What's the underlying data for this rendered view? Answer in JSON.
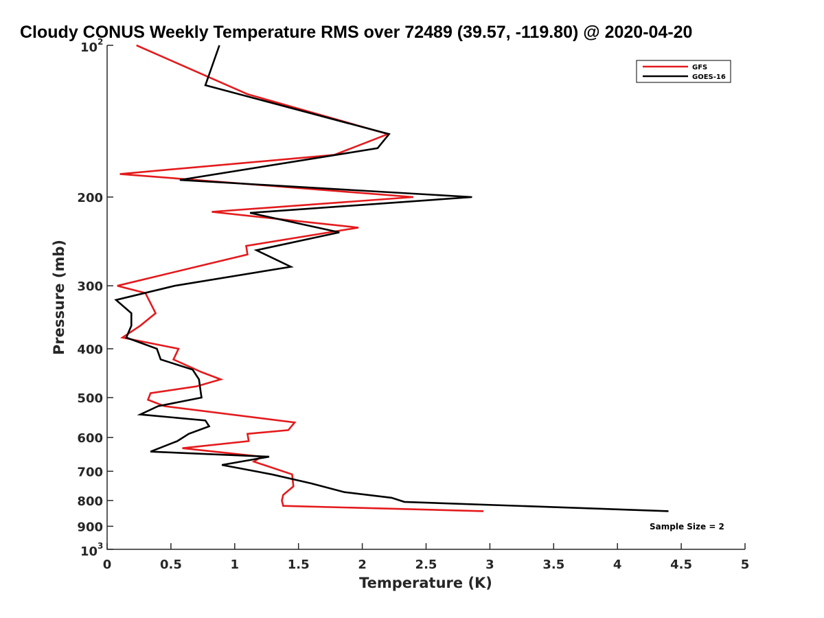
{
  "chart_data": {
    "type": "line",
    "title": "Cloudy CONUS Weekly Temperature RMS over 72489 (39.57, -119.80) @ 2020-04-20",
    "xlabel": "Temperature (K)",
    "ylabel": "Pressure (mb)",
    "xlim": [
      0,
      5
    ],
    "ylim": [
      100,
      1000
    ],
    "y_scale": "log",
    "y_reversed": true,
    "grid": false,
    "legend_position": "top-right",
    "x_ticks": [
      "0",
      "0.5",
      "1",
      "1.5",
      "2",
      "2.5",
      "3",
      "3.5",
      "4",
      "4.5",
      "5"
    ],
    "y_ticks": [
      {
        "value": 100,
        "base": "10",
        "exp": "2"
      },
      {
        "value": 200,
        "label": "200"
      },
      {
        "value": 300,
        "label": "300"
      },
      {
        "value": 400,
        "label": "400"
      },
      {
        "value": 500,
        "label": "500"
      },
      {
        "value": 600,
        "label": "600"
      },
      {
        "value": 700,
        "label": "700"
      },
      {
        "value": 800,
        "label": "800"
      },
      {
        "value": 900,
        "label": "900"
      },
      {
        "value": 1000,
        "base": "10",
        "exp": "3"
      }
    ],
    "annotation": "Sample Size = 2",
    "series": [
      {
        "name": "GFS",
        "color": "#e41a1c",
        "points": [
          [
            0.23,
            100
          ],
          [
            1.1,
            125
          ],
          [
            2.2,
            150
          ],
          [
            1.78,
            165
          ],
          [
            0.1,
            180
          ],
          [
            2.4,
            200
          ],
          [
            0.82,
            214
          ],
          [
            1.97,
            230
          ],
          [
            1.09,
            250
          ],
          [
            1.1,
            260
          ],
          [
            0.08,
            300
          ],
          [
            0.3,
            310
          ],
          [
            0.38,
            340
          ],
          [
            0.26,
            360
          ],
          [
            0.12,
            380
          ],
          [
            0.56,
            400
          ],
          [
            0.52,
            420
          ],
          [
            0.74,
            445
          ],
          [
            0.89,
            460
          ],
          [
            0.7,
            475
          ],
          [
            0.34,
            490
          ],
          [
            0.32,
            505
          ],
          [
            0.45,
            520
          ],
          [
            1.47,
            560
          ],
          [
            1.42,
            580
          ],
          [
            1.1,
            590
          ],
          [
            1.11,
            610
          ],
          [
            0.59,
            630
          ],
          [
            1.21,
            655
          ],
          [
            1.15,
            670
          ],
          [
            1.45,
            710
          ],
          [
            1.46,
            750
          ],
          [
            1.38,
            780
          ],
          [
            1.37,
            800
          ],
          [
            1.38,
            820
          ],
          [
            2.95,
            840
          ]
        ]
      },
      {
        "name": "GOES-16",
        "color": "#000000",
        "points": [
          [
            0.88,
            100
          ],
          [
            0.77,
            120
          ],
          [
            2.21,
            150
          ],
          [
            2.12,
            160
          ],
          [
            0.57,
            185
          ],
          [
            2.86,
            200
          ],
          [
            1.12,
            215
          ],
          [
            1.82,
            235
          ],
          [
            1.17,
            255
          ],
          [
            1.44,
            275
          ],
          [
            0.53,
            300
          ],
          [
            0.07,
            320
          ],
          [
            0.19,
            340
          ],
          [
            0.19,
            360
          ],
          [
            0.15,
            380
          ],
          [
            0.39,
            400
          ],
          [
            0.42,
            420
          ],
          [
            0.67,
            440
          ],
          [
            0.72,
            460
          ],
          [
            0.73,
            480
          ],
          [
            0.74,
            500
          ],
          [
            0.4,
            520
          ],
          [
            0.26,
            540
          ],
          [
            0.77,
            555
          ],
          [
            0.8,
            570
          ],
          [
            0.64,
            590
          ],
          [
            0.55,
            610
          ],
          [
            0.34,
            640
          ],
          [
            1.27,
            655
          ],
          [
            0.9,
            680
          ],
          [
            1.29,
            710
          ],
          [
            1.6,
            740
          ],
          [
            1.86,
            770
          ],
          [
            2.23,
            790
          ],
          [
            2.33,
            805
          ],
          [
            4.4,
            840
          ]
        ]
      }
    ]
  }
}
